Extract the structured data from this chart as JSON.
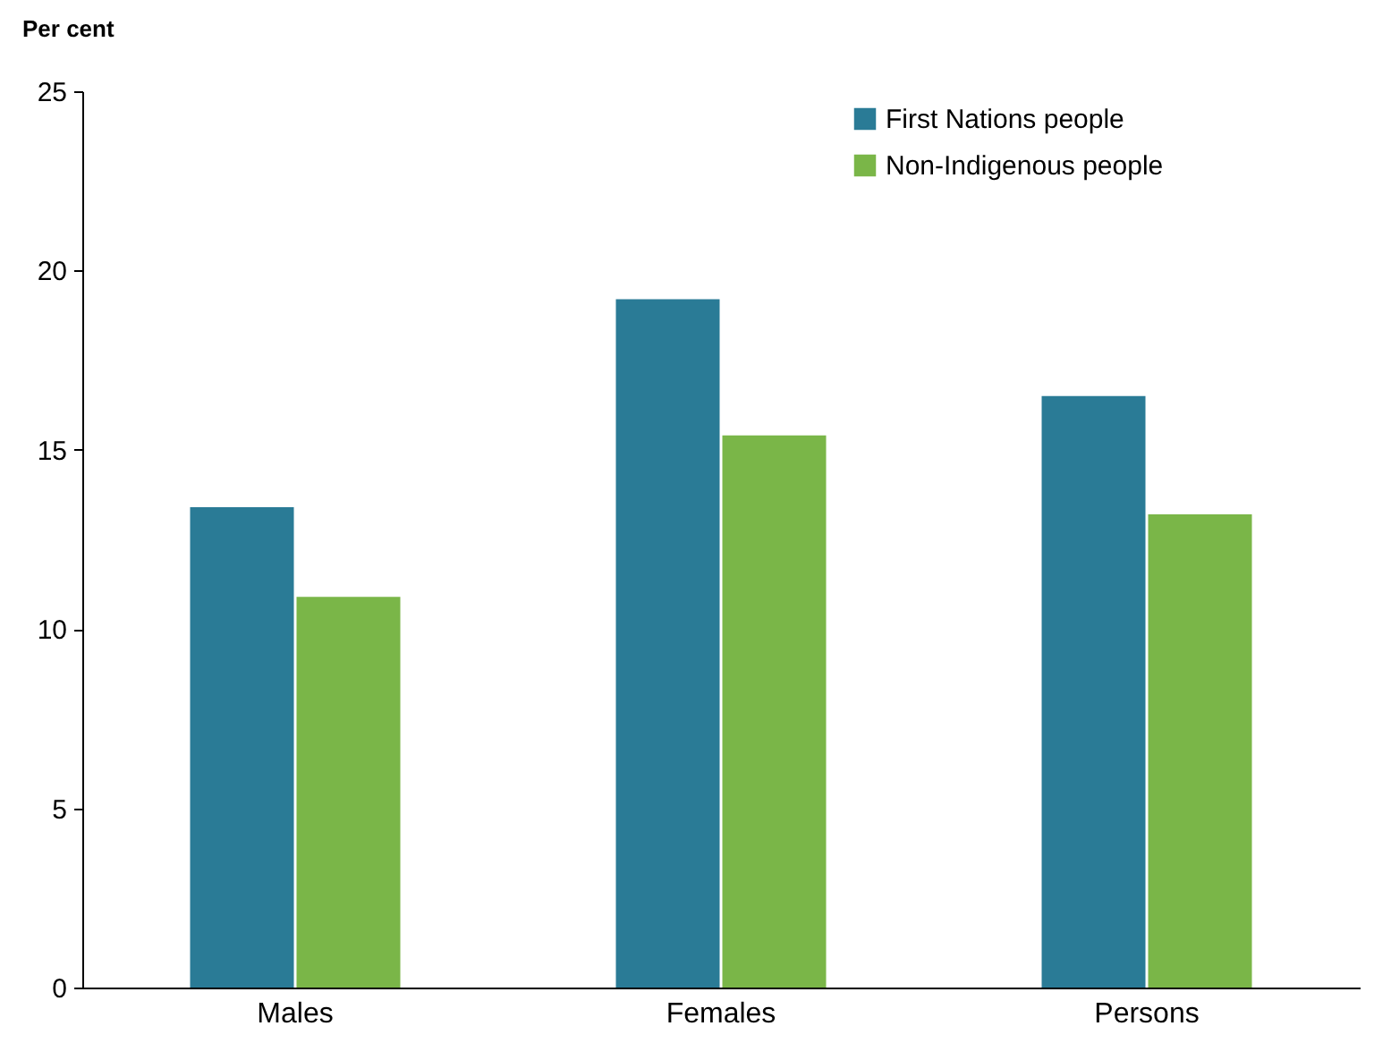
{
  "chart_data": {
    "type": "bar",
    "ylabel": "Per cent",
    "categories": [
      "Males",
      "Females",
      "Persons"
    ],
    "series": [
      {
        "name": "First Nations people",
        "color": "#2a7b96",
        "values": [
          13.4,
          19.2,
          16.5
        ]
      },
      {
        "name": "Non-Indigenous people",
        "color": "#7ab648",
        "values": [
          10.9,
          15.4,
          13.2
        ]
      }
    ],
    "ylim": [
      0,
      25
    ],
    "yticks": [
      0,
      5,
      10,
      15,
      20,
      25
    ],
    "grid": false,
    "legend": "top right"
  }
}
